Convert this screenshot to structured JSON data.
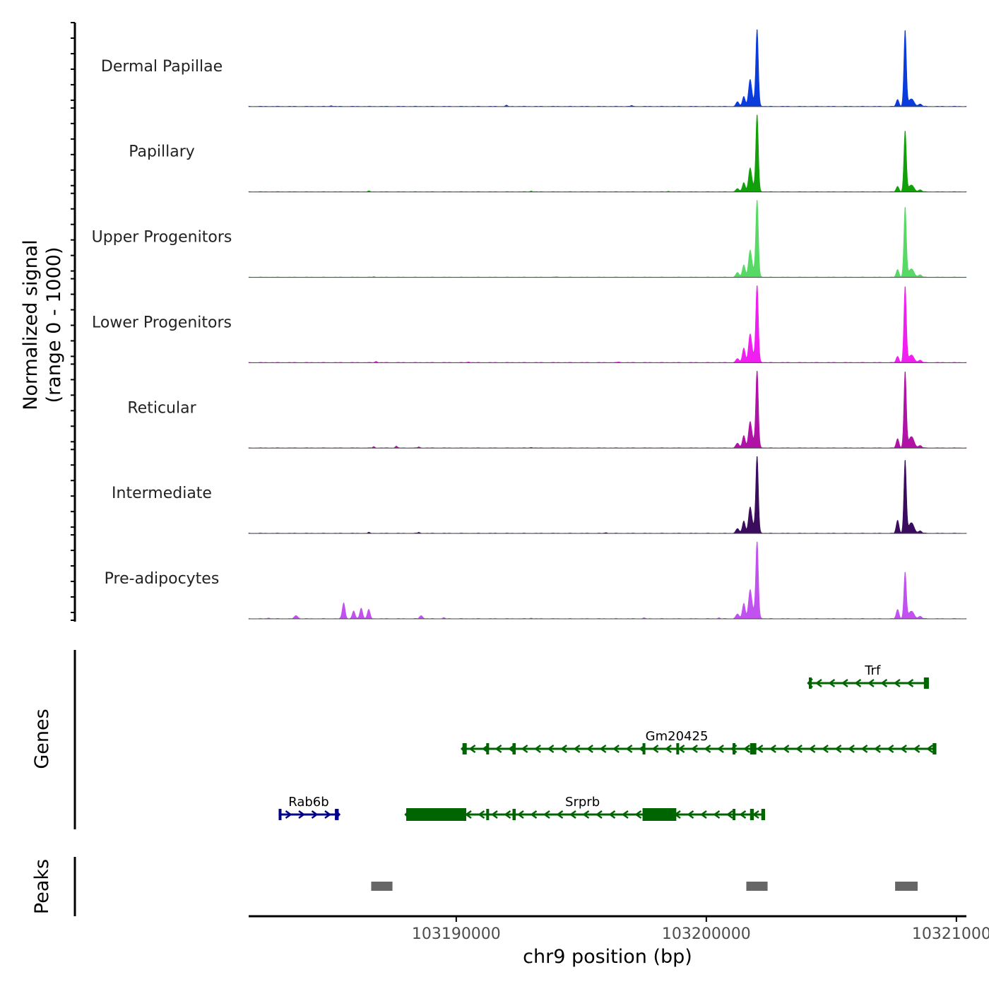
{
  "chart_data": {
    "type": "area",
    "title": "",
    "ylabel_line1": "Normalized signal",
    "ylabel_line2": "(range 0 - 1000)",
    "xlabel": "chr9 position (bp)",
    "chrom": "chr9",
    "xlim": [
      103181700,
      103210400
    ],
    "ylim": [
      0,
      1000
    ],
    "x_ticks": [
      103190000,
      103200000,
      103210000
    ],
    "x_tick_labels": [
      "103190000",
      "103200000",
      "103210000"
    ],
    "tracks": [
      {
        "name": "Dermal Papillae",
        "color": "#0a3bdc",
        "peaks": [
          {
            "x": 103201250,
            "w": 90,
            "h": 60
          },
          {
            "x": 103201500,
            "w": 80,
            "h": 130
          },
          {
            "x": 103201750,
            "w": 90,
            "h": 320
          },
          {
            "x": 103202030,
            "w": 70,
            "h": 1000
          },
          {
            "x": 103201900,
            "w": 200,
            "h": 60
          },
          {
            "x": 103207650,
            "w": 80,
            "h": 90
          },
          {
            "x": 103207950,
            "w": 70,
            "h": 1000
          },
          {
            "x": 103208200,
            "w": 150,
            "h": 100
          },
          {
            "x": 103208550,
            "w": 100,
            "h": 30
          }
        ],
        "background": [
          {
            "x": 103185000,
            "h": 12
          },
          {
            "x": 103192000,
            "h": 15
          },
          {
            "x": 103197000,
            "h": 12
          }
        ]
      },
      {
        "name": "Papillary",
        "color": "#12a00a",
        "peaks": [
          {
            "x": 103201250,
            "w": 100,
            "h": 40
          },
          {
            "x": 103201500,
            "w": 80,
            "h": 120
          },
          {
            "x": 103201750,
            "w": 90,
            "h": 280
          },
          {
            "x": 103202030,
            "w": 70,
            "h": 1000
          },
          {
            "x": 103201900,
            "w": 200,
            "h": 60
          },
          {
            "x": 103207650,
            "w": 80,
            "h": 70
          },
          {
            "x": 103207950,
            "w": 70,
            "h": 800
          },
          {
            "x": 103208200,
            "w": 150,
            "h": 90
          },
          {
            "x": 103208550,
            "w": 100,
            "h": 25
          }
        ],
        "background": [
          {
            "x": 103186500,
            "h": 10
          },
          {
            "x": 103193000,
            "h": 12
          },
          {
            "x": 103198500,
            "h": 8
          }
        ]
      },
      {
        "name": "Upper Progenitors",
        "color": "#57d965",
        "peaks": [
          {
            "x": 103201250,
            "w": 100,
            "h": 60
          },
          {
            "x": 103201500,
            "w": 80,
            "h": 160
          },
          {
            "x": 103201750,
            "w": 90,
            "h": 310
          },
          {
            "x": 103202030,
            "w": 70,
            "h": 1000
          },
          {
            "x": 103201900,
            "w": 200,
            "h": 80
          },
          {
            "x": 103207650,
            "w": 80,
            "h": 100
          },
          {
            "x": 103207950,
            "w": 70,
            "h": 920
          },
          {
            "x": 103208200,
            "w": 150,
            "h": 110
          },
          {
            "x": 103208550,
            "w": 100,
            "h": 30
          }
        ],
        "background": [
          {
            "x": 103186700,
            "h": 10
          },
          {
            "x": 103194000,
            "h": 8
          }
        ]
      },
      {
        "name": "Lower Progenitors",
        "color": "#f01ef0",
        "peaks": [
          {
            "x": 103201250,
            "w": 100,
            "h": 50
          },
          {
            "x": 103201500,
            "w": 80,
            "h": 190
          },
          {
            "x": 103201750,
            "w": 90,
            "h": 330
          },
          {
            "x": 103202030,
            "w": 70,
            "h": 1000
          },
          {
            "x": 103201900,
            "w": 200,
            "h": 80
          },
          {
            "x": 103207650,
            "w": 80,
            "h": 80
          },
          {
            "x": 103207950,
            "w": 70,
            "h": 1000
          },
          {
            "x": 103208200,
            "w": 150,
            "h": 100
          },
          {
            "x": 103208550,
            "w": 100,
            "h": 30
          }
        ],
        "background": [
          {
            "x": 103186800,
            "h": 18
          },
          {
            "x": 103190500,
            "h": 10
          },
          {
            "x": 103196500,
            "h": 10
          }
        ]
      },
      {
        "name": "Reticular",
        "color": "#b012a6",
        "peaks": [
          {
            "x": 103201250,
            "w": 100,
            "h": 60
          },
          {
            "x": 103201500,
            "w": 80,
            "h": 160
          },
          {
            "x": 103201750,
            "w": 90,
            "h": 300
          },
          {
            "x": 103202030,
            "w": 70,
            "h": 1000
          },
          {
            "x": 103201900,
            "w": 200,
            "h": 80
          },
          {
            "x": 103207650,
            "w": 80,
            "h": 120
          },
          {
            "x": 103207950,
            "w": 70,
            "h": 1000
          },
          {
            "x": 103208200,
            "w": 150,
            "h": 150
          },
          {
            "x": 103208550,
            "w": 100,
            "h": 30
          }
        ],
        "background": [
          {
            "x": 103186700,
            "h": 18
          },
          {
            "x": 103187600,
            "h": 25
          },
          {
            "x": 103188500,
            "h": 15
          },
          {
            "x": 103193000,
            "h": 10
          }
        ]
      },
      {
        "name": "Intermediate",
        "color": "#3b0c5e",
        "peaks": [
          {
            "x": 103201250,
            "w": 100,
            "h": 60
          },
          {
            "x": 103201500,
            "w": 80,
            "h": 160
          },
          {
            "x": 103201750,
            "w": 90,
            "h": 300
          },
          {
            "x": 103202030,
            "w": 70,
            "h": 1000
          },
          {
            "x": 103201900,
            "w": 200,
            "h": 80
          },
          {
            "x": 103207650,
            "w": 80,
            "h": 170
          },
          {
            "x": 103207950,
            "w": 70,
            "h": 960
          },
          {
            "x": 103208200,
            "w": 150,
            "h": 140
          },
          {
            "x": 103208550,
            "w": 100,
            "h": 30
          }
        ],
        "background": [
          {
            "x": 103186500,
            "h": 12
          },
          {
            "x": 103188500,
            "h": 15
          },
          {
            "x": 103196000,
            "h": 10
          }
        ]
      },
      {
        "name": "Pre-adipocytes",
        "color": "#c252f0",
        "peaks": [
          {
            "x": 103201250,
            "w": 100,
            "h": 60
          },
          {
            "x": 103201500,
            "w": 80,
            "h": 200
          },
          {
            "x": 103201750,
            "w": 90,
            "h": 330
          },
          {
            "x": 103202030,
            "w": 70,
            "h": 1000
          },
          {
            "x": 103201900,
            "w": 200,
            "h": 90
          },
          {
            "x": 103207650,
            "w": 80,
            "h": 120
          },
          {
            "x": 103207950,
            "w": 70,
            "h": 610
          },
          {
            "x": 103208200,
            "w": 150,
            "h": 100
          },
          {
            "x": 103208550,
            "w": 100,
            "h": 30
          },
          {
            "x": 103185500,
            "w": 80,
            "h": 210
          },
          {
            "x": 103185900,
            "w": 80,
            "h": 100
          },
          {
            "x": 103186200,
            "w": 80,
            "h": 140
          },
          {
            "x": 103186500,
            "w": 80,
            "h": 120
          },
          {
            "x": 103183600,
            "w": 100,
            "h": 40
          },
          {
            "x": 103188600,
            "w": 90,
            "h": 40
          }
        ],
        "background": [
          {
            "x": 103182500,
            "h": 12
          },
          {
            "x": 103189500,
            "h": 12
          },
          {
            "x": 103193000,
            "h": 10
          },
          {
            "x": 103197500,
            "h": 10
          },
          {
            "x": 103200500,
            "h": 12
          }
        ]
      }
    ],
    "genes_label": "Genes",
    "genes": [
      {
        "name": "Trf",
        "strand": "-",
        "color": "#006400",
        "row": 0,
        "start": 103204100,
        "end": 103208900,
        "exons": [
          [
            103204100,
            103204200
          ],
          [
            103208700,
            103208900
          ]
        ],
        "label_x": 103206650
      },
      {
        "name": "Gm20425",
        "strand": "-",
        "color": "#006400",
        "row": 1,
        "start": 103190250,
        "end": 103209200,
        "exons": [
          [
            103190250,
            103190420
          ],
          [
            103191200,
            103191300
          ],
          [
            103192250,
            103192380
          ],
          [
            103197450,
            103197550
          ],
          [
            103198800,
            103198900
          ],
          [
            103201050,
            103201150
          ],
          [
            103201750,
            103202000
          ],
          [
            103209050,
            103209200
          ]
        ],
        "label_x": 103198820
      },
      {
        "name": "Rab6b",
        "strand": "+",
        "color": "#00008b",
        "row": 2,
        "start": 103182900,
        "end": 103185300,
        "exons": [
          [
            103182900,
            103183000
          ],
          [
            103185150,
            103185300
          ]
        ],
        "label_x": 103184100
      },
      {
        "name": "Srprb",
        "strand": "-",
        "color": "#006400",
        "row": 2,
        "start": 103188000,
        "end": 103202350,
        "exons": [
          [
            103188000,
            103190400
          ],
          [
            103191200,
            103191300
          ],
          [
            103192250,
            103192380
          ],
          [
            103197450,
            103198800
          ],
          [
            103201050,
            103201150
          ],
          [
            103201750,
            103201900
          ],
          [
            103202200,
            103202350
          ]
        ],
        "label_x": 103195050
      }
    ],
    "peaks_label": "Peaks",
    "peaks": [
      [
        103186600,
        103187450
      ],
      [
        103201600,
        103202450
      ],
      [
        103207550,
        103208450
      ]
    ]
  }
}
